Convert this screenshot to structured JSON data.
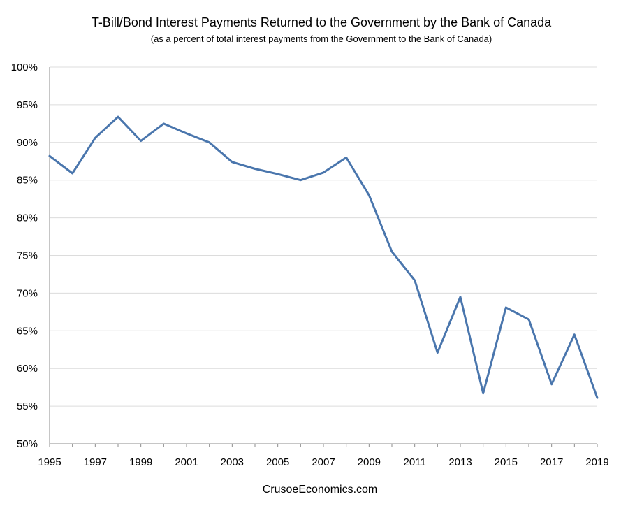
{
  "chart_data": {
    "type": "line",
    "title": "T-Bill/Bond Interest Payments Returned to the Government by the Bank of Canada",
    "subtitle": "(as a percent  of total interest payments from the Government to the Bank of Canada)",
    "source": "CrusoeEconomics.com",
    "x": [
      1995,
      1996,
      1997,
      1998,
      1999,
      2000,
      2001,
      2002,
      2003,
      2004,
      2005,
      2006,
      2007,
      2008,
      2009,
      2010,
      2011,
      2012,
      2013,
      2014,
      2015,
      2016,
      2017,
      2018,
      2019
    ],
    "xticks": [
      "1995",
      "1997",
      "1999",
      "2001",
      "2003",
      "2005",
      "2007",
      "2009",
      "2011",
      "2013",
      "2015",
      "2017",
      "2019"
    ],
    "yticks": [
      "50%",
      "55%",
      "60%",
      "65%",
      "70%",
      "75%",
      "80%",
      "85%",
      "90%",
      "95%",
      "100%"
    ],
    "ylim": [
      50,
      100
    ],
    "xlim": [
      1995,
      2019
    ],
    "grid": true,
    "series": [
      {
        "name": "",
        "color": "#4a76ad",
        "values": [
          88.2,
          85.9,
          90.6,
          93.4,
          90.2,
          92.5,
          91.2,
          90.0,
          87.4,
          86.5,
          85.8,
          85.0,
          86.0,
          88.0,
          83.0,
          75.5,
          71.7,
          62.1,
          69.5,
          56.7,
          68.1,
          66.5,
          57.9,
          64.5,
          56.1
        ]
      }
    ]
  }
}
